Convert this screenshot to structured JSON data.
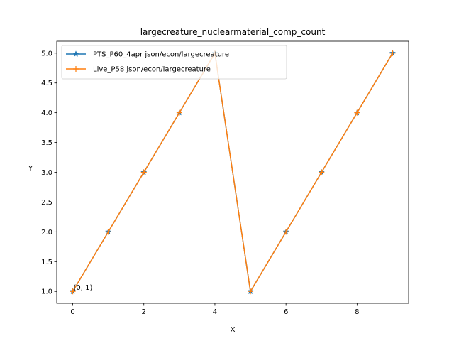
{
  "chart_data": {
    "type": "line",
    "title": "largecreature_nuclearmaterial_comp_count",
    "xlabel": "X",
    "ylabel": "Y",
    "xlim": [
      -0.45,
      9.45
    ],
    "ylim": [
      0.8,
      5.2
    ],
    "x_ticks": [
      0,
      2,
      4,
      6,
      8
    ],
    "x_tick_labels": [
      "0",
      "2",
      "4",
      "6",
      "8"
    ],
    "y_ticks": [
      1.0,
      1.5,
      2.0,
      2.5,
      3.0,
      3.5,
      4.0,
      4.5,
      5.0
    ],
    "y_tick_labels": [
      "1.0",
      "1.5",
      "2.0",
      "2.5",
      "3.0",
      "3.5",
      "4.0",
      "4.5",
      "5.0"
    ],
    "grid": false,
    "legend_position": "top-left",
    "x": [
      0,
      1,
      2,
      3,
      4,
      5,
      6,
      7,
      8,
      9
    ],
    "series": [
      {
        "name": "PTS_P60_4apr json/econ/largecreature",
        "color": "#1f77b4",
        "marker": "star",
        "values": [
          1,
          2,
          3,
          4,
          5,
          1,
          2,
          3,
          4,
          5
        ]
      },
      {
        "name": "Live_P58 json/econ/largecreature",
        "color": "#ff7f0e",
        "marker": "plus",
        "values": [
          1,
          2,
          3,
          4,
          5,
          1,
          2,
          3,
          4,
          5
        ]
      }
    ],
    "annotations": [
      {
        "text": "(0, 1)",
        "x": 0,
        "y": 1
      }
    ]
  }
}
